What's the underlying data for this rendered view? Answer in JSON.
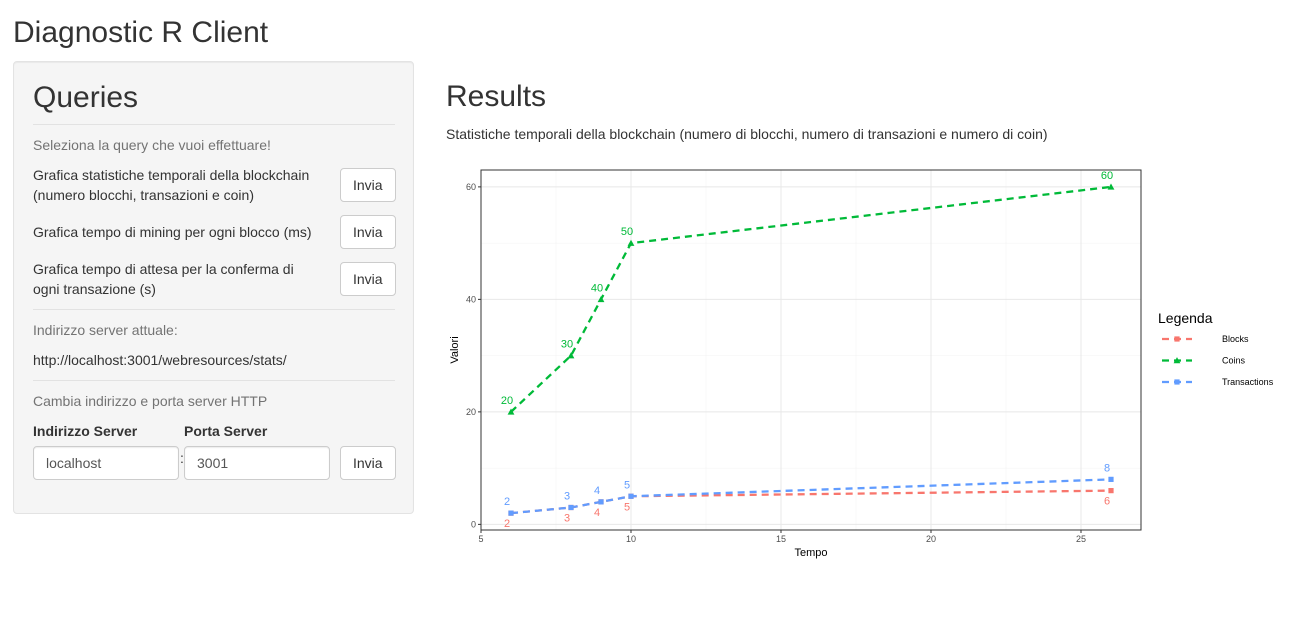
{
  "app": {
    "title": "Diagnostic R Client"
  },
  "sidebar": {
    "title": "Queries",
    "select_help": "Seleziona la query che vuoi effettuare!",
    "queries": [
      {
        "label": "Grafica statistiche temporali della blockchain (numero blocchi, transazioni e coin)",
        "button": "Invia"
      },
      {
        "label": "Grafica tempo di mining per ogni blocco (ms)",
        "button": "Invia"
      },
      {
        "label": "Grafica tempo di attesa per la conferma di ogni transazione (s)",
        "button": "Invia"
      }
    ],
    "current_address_label": "Indirizzo server attuale:",
    "current_address": "http://localhost:3001/webresources/stats/",
    "change_label": "Cambia indirizzo e porta server HTTP",
    "server": {
      "address_label": "Indirizzo Server",
      "address_value": "localhost",
      "port_label": "Porta Server",
      "port_value": "3001",
      "separator": ":",
      "button": "Invia"
    }
  },
  "results": {
    "title": "Results",
    "subtitle": "Statistiche temporali della blockchain (numero di blocchi, numero di transazioni e numero di coin)"
  },
  "chart_data": {
    "type": "line",
    "xlabel": "Tempo",
    "ylabel": "Valori",
    "xlim": [
      5,
      27
    ],
    "ylim": [
      -1,
      63
    ],
    "x_ticks": [
      5,
      10,
      15,
      20,
      25
    ],
    "y_ticks": [
      0,
      20,
      40,
      60
    ],
    "grid": true,
    "legend": {
      "title": "Legenda",
      "position": "right"
    },
    "series": [
      {
        "name": "Blocks",
        "color": "#F8766D",
        "marker": "square",
        "x": [
          6,
          8,
          9,
          10,
          26
        ],
        "values": [
          2,
          3,
          4,
          5,
          6
        ]
      },
      {
        "name": "Coins",
        "color": "#00BA38",
        "marker": "triangle",
        "x": [
          6,
          8,
          9,
          10,
          26
        ],
        "values": [
          20,
          30,
          40,
          50,
          60
        ]
      },
      {
        "name": "Transactions",
        "color": "#619CFF",
        "marker": "square",
        "x": [
          6,
          8,
          9,
          10,
          26
        ],
        "values": [
          2,
          3,
          4,
          5,
          8
        ]
      }
    ]
  }
}
